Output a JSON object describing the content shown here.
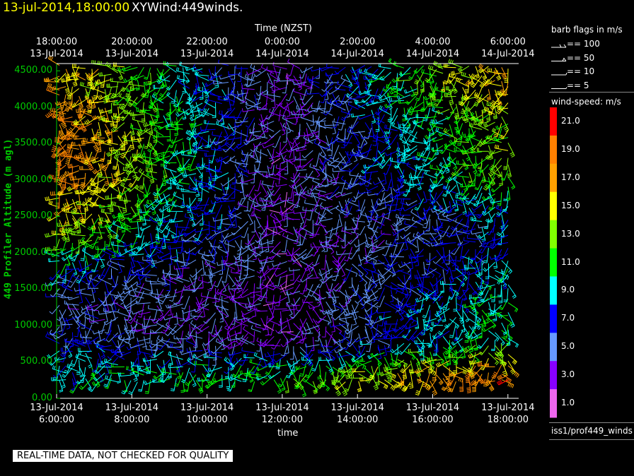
{
  "header": {
    "date_time": "13-jul-2014,18:00:00",
    "plot_name": "XYWind:449winds."
  },
  "top_axis": {
    "title": "Time (NZST)",
    "ticks": [
      {
        "time": "18:00:00",
        "date": "13-Jul-2014"
      },
      {
        "time": "20:00:00",
        "date": "13-Jul-2014"
      },
      {
        "time": "22:00:00",
        "date": "13-Jul-2014"
      },
      {
        "time": "0:00:00",
        "date": "14-Jul-2014"
      },
      {
        "time": "2:00:00",
        "date": "14-Jul-2014"
      },
      {
        "time": "4:00:00",
        "date": "14-Jul-2014"
      },
      {
        "time": "6:00:00",
        "date": "14-Jul-2014"
      }
    ]
  },
  "bottom_axis": {
    "title": "time",
    "ticks": [
      {
        "date": "13-Jul-2014",
        "time": "6:00:00"
      },
      {
        "date": "13-Jul-2014",
        "time": "8:00:00"
      },
      {
        "date": "13-Jul-2014",
        "time": "10:00:00"
      },
      {
        "date": "13-Jul-2014",
        "time": "12:00:00"
      },
      {
        "date": "13-Jul-2014",
        "time": "14:00:00"
      },
      {
        "date": "13-Jul-2014",
        "time": "16:00:00"
      },
      {
        "date": "13-Jul-2014",
        "time": "18:00:00"
      }
    ]
  },
  "y_axis": {
    "label": "449 Profiler Altitude (m agl)",
    "ticks": [
      "4500.00",
      "4000.00",
      "3500.00",
      "3000.00",
      "2500.00",
      "2000.00",
      "1500.00",
      "1000.00",
      "500.00",
      "0.00"
    ]
  },
  "legend": {
    "title": "barb flags in m/s",
    "flags": [
      "== 100",
      "== 50",
      "== 10",
      "== 5"
    ]
  },
  "colorbar": {
    "title": "wind-speed: m/s",
    "labels": [
      "21.0",
      "19.0",
      "17.0",
      "15.0",
      "13.0",
      "11.0",
      "9.0",
      "7.0",
      "5.0",
      "3.0",
      "1.0"
    ],
    "colors": [
      "#ff0000",
      "#ff8000",
      "#ffa000",
      "#ffff00",
      "#80ff00",
      "#00ff00",
      "#00ffff",
      "#0000ff",
      "#6699ff",
      "#8800ff",
      "#ee66ee"
    ]
  },
  "station": "iss1/prof449_winds",
  "disclaimer": "REAL-TIME DATA, NOT CHECKED FOR QUALITY",
  "chart_data": {
    "type": "scatter",
    "description_kind": "wind barb time-height profile",
    "x_range_hours": [
      "13-Jul-2014 6:00:00",
      "13-Jul-2014 18:00:00"
    ],
    "ylim": [
      0,
      4600
    ],
    "xlabel": "time",
    "ylabel": "449 Profiler Altitude (m agl)",
    "speed_units": "m/s",
    "speed_profile": [
      {
        "altitude": 4300,
        "early": 17,
        "mid": 3,
        "late": 17
      },
      {
        "altitude": 3800,
        "early": 19,
        "mid": 3,
        "late": 13
      },
      {
        "altitude": 3200,
        "early": 19,
        "mid": 3,
        "late": 13
      },
      {
        "altitude": 2700,
        "early": 17,
        "mid": 3,
        "late": 9
      },
      {
        "altitude": 2200,
        "early": 13,
        "mid": 3,
        "late": 7
      },
      {
        "altitude": 1700,
        "early": 7,
        "mid": 3,
        "late": 9
      },
      {
        "altitude": 1200,
        "early": 5,
        "mid": 3,
        "late": 11
      },
      {
        "altitude": 800,
        "early": 7,
        "mid": 3,
        "late": 11
      },
      {
        "altitude": 400,
        "early": 9,
        "mid": 11,
        "late": 19
      }
    ]
  }
}
